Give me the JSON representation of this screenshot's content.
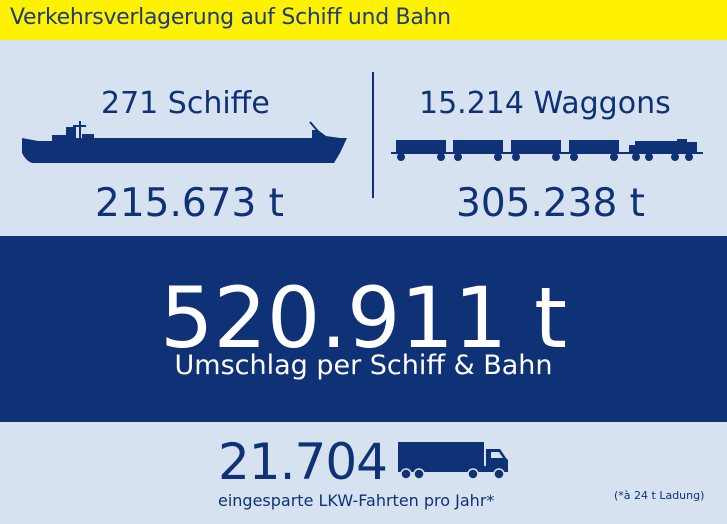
{
  "header": {
    "title": "Verkehrsverlagerung auf Schiff und Bahn"
  },
  "ships": {
    "count_label": "271 Schiffe",
    "tonnage": "215.673 t",
    "icon": "ship-icon"
  },
  "rail": {
    "count_label": "15.214 Waggons",
    "tonnage": "305.238 t",
    "icon": "train-icon"
  },
  "total": {
    "value": "520.911 t",
    "label": "Umschlag per Schiff & Bahn"
  },
  "trucks": {
    "value": "21.704",
    "label": "eingesparte LKW-Fahrten pro Jahr*",
    "icon": "truck-icon"
  },
  "footnote": "(*à 24 t Ladung)",
  "colors": {
    "navy": "#0f3175",
    "light_blue": "#d6e2ef",
    "yellow": "#fff200",
    "white": "#ffffff"
  }
}
